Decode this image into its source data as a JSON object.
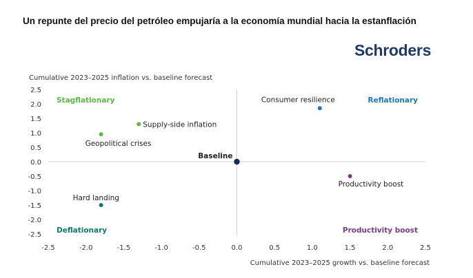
{
  "headline": "Un repunte del precio del petróleo empujaría a la economía mundial hacia la estanflación",
  "brand": "Schroders",
  "chart_data": {
    "type": "scatter",
    "xlabel": "Cumulative 2023–2025 growth vs. baseline forecast",
    "ylabel": "Cumulative 2023–2025 inflation vs. baseline forecast",
    "xlim": [
      -2.5,
      2.5
    ],
    "ylim": [
      -2.5,
      2.5
    ],
    "xticks": [
      "-2.5",
      "-2.0",
      "-1.5",
      "-1.0",
      "-0.5",
      "0.0",
      "0.5",
      "1.0",
      "1.5",
      "2.0",
      "2.5"
    ],
    "yticks": [
      "2.5",
      "2.0",
      "1.5",
      "1.0",
      "0.5",
      "0.0",
      "-0.5",
      "-1.0",
      "-1.5",
      "-2.0",
      "-2.5"
    ],
    "grid": false,
    "quadrants": [
      {
        "label": "Stagflationary",
        "color": "#5cb946"
      },
      {
        "label": "Reflationary",
        "color": "#1f78b4"
      },
      {
        "label": "Deflationary",
        "color": "#0f7a6c"
      },
      {
        "label": "Productivity boost",
        "color": "#7b3c86"
      }
    ],
    "points": [
      {
        "label": "Baseline",
        "x": 0.0,
        "y": 0.0,
        "color": "#102a5c"
      },
      {
        "label": "Consumer resilience",
        "x": 1.1,
        "y": 1.85,
        "color": "#1f78b4"
      },
      {
        "label": "Supply-side inflation",
        "x": -1.3,
        "y": 1.3,
        "color": "#5cb946"
      },
      {
        "label": "Geopolitical crises",
        "x": -1.8,
        "y": 0.95,
        "color": "#5cb946"
      },
      {
        "label": "Productivity boost",
        "x": 1.5,
        "y": -0.5,
        "color": "#7b3c86"
      },
      {
        "label": "Hard landing",
        "x": -1.8,
        "y": -1.5,
        "color": "#0f7a6c"
      }
    ]
  }
}
